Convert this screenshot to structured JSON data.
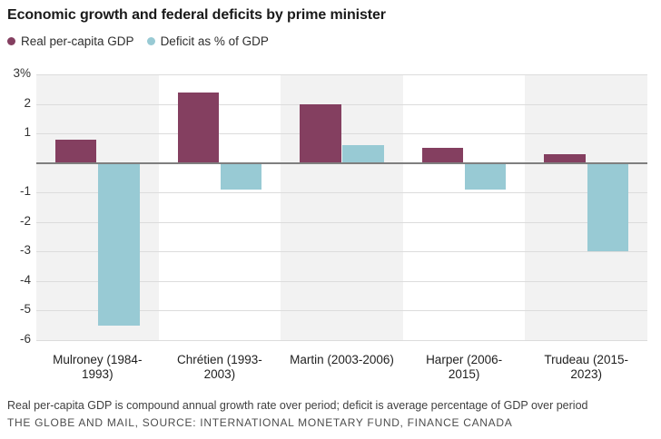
{
  "title": "Economic growth and federal deficits by prime minister",
  "legend": {
    "items": [
      {
        "name": "gdp",
        "label": "Real per-capita GDP",
        "color": "#843F60"
      },
      {
        "name": "deficit",
        "label": "Deficit as % of GDP",
        "color": "#98CAD4"
      }
    ]
  },
  "footnote": "Real per-capita GDP is compound annual growth rate over period; deficit is average percentage of GDP over period",
  "credit": "THE GLOBE AND MAIL, SOURCE: INTERNATIONAL MONETARY FUND, FINANCE CANADA",
  "chart_data": {
    "type": "bar",
    "title": "Economic growth and federal deficits by prime minister",
    "categories": [
      "Mulroney (1984-1993)",
      "Chrétien (1993-2003)",
      "Martin (2003-2006)",
      "Harper (2006-2015)",
      "Trudeau (2015-2023)"
    ],
    "series": [
      {
        "name": "Real per-capita GDP",
        "color": "#843F60",
        "values": [
          0.8,
          2.4,
          2.0,
          0.5,
          0.3
        ]
      },
      {
        "name": "Deficit as % of GDP",
        "color": "#98CAD4",
        "values": [
          -5.5,
          -0.9,
          0.6,
          -0.9,
          -3.0
        ]
      }
    ],
    "xlabel": "",
    "ylabel": "",
    "ylim": [
      -6,
      3
    ],
    "yticks": [
      {
        "value": 3,
        "label": "3%"
      },
      {
        "value": 2,
        "label": "2"
      },
      {
        "value": 1,
        "label": "1"
      },
      {
        "value": -1,
        "label": "-1"
      },
      {
        "value": -2,
        "label": "-2"
      },
      {
        "value": -3,
        "label": "-3"
      },
      {
        "value": -4,
        "label": "-4"
      },
      {
        "value": -5,
        "label": "-5"
      },
      {
        "value": -6,
        "label": "-6"
      }
    ],
    "grid": true,
    "legend_position": "top-left",
    "band_fills": [
      "#F2F2F2",
      "#FFFFFF",
      "#F2F2F2",
      "#FFFFFF",
      "#F2F2F2"
    ],
    "gridline_color": "#DCDCDC",
    "zeroline_color": "#7F7F7F"
  }
}
